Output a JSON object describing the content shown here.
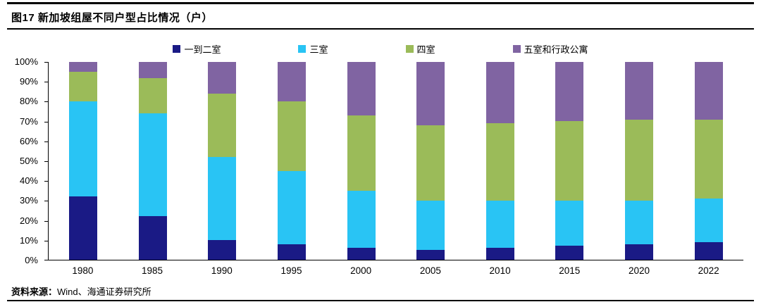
{
  "header": {
    "title": "图17 新加坡组屋不同户型占比情况（户）"
  },
  "footer": {
    "source_label": "资料来源：",
    "source_value": "Wind、海通证券研究所"
  },
  "chart_data": {
    "type": "bar",
    "stacked": true,
    "percent": true,
    "title": "图17 新加坡组屋不同户型占比情况（户）",
    "categories": [
      "1980",
      "1985",
      "1990",
      "1995",
      "2000",
      "2005",
      "2010",
      "2015",
      "2020",
      "2022"
    ],
    "series": [
      {
        "name": "一到二室",
        "color": "#1a1a85",
        "values": [
          32,
          22,
          10,
          8,
          6,
          5,
          6,
          7,
          8,
          9
        ]
      },
      {
        "name": "三室",
        "color": "#29c4f4",
        "values": [
          48,
          52,
          42,
          37,
          29,
          25,
          24,
          23,
          22,
          22
        ]
      },
      {
        "name": "四室",
        "color": "#9bbb59",
        "values": [
          15,
          18,
          32,
          35,
          38,
          38,
          39,
          40,
          41,
          40
        ]
      },
      {
        "name": "五室和行政公寓",
        "color": "#8064a2",
        "values": [
          5,
          8,
          16,
          20,
          27,
          32,
          31,
          30,
          29,
          29
        ]
      }
    ],
    "xlabel": "",
    "ylabel": "",
    "ylim": [
      0,
      100
    ],
    "ytick_step": 10,
    "ytick_suffix": "%",
    "legend_position": "top",
    "grid": false
  }
}
